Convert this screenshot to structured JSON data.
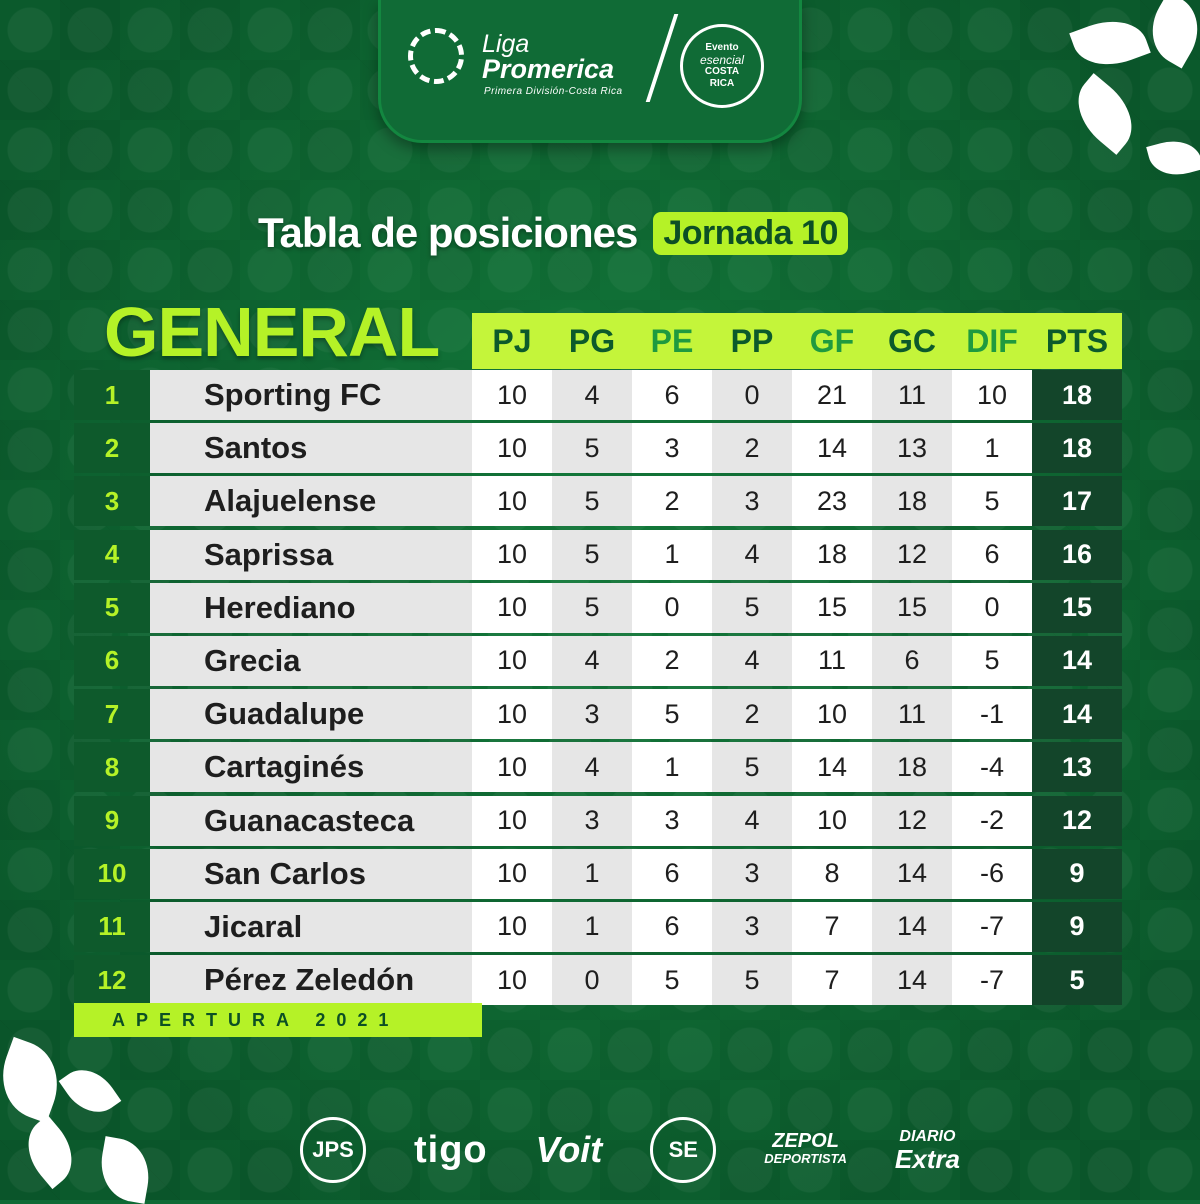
{
  "header": {
    "liga": "Liga",
    "promerica": "Promerica",
    "division": "Primera División-Costa Rica",
    "seal_lines": [
      "Evento",
      "esencial",
      "COSTA",
      "RICA"
    ]
  },
  "title": {
    "main": "Tabla de posiciones",
    "jornada": "Jornada 10"
  },
  "general_label": "GENERAL",
  "columns": [
    "PJ",
    "PG",
    "PE",
    "PP",
    "GF",
    "GC",
    "DIF",
    "PTS"
  ],
  "rows": [
    {
      "pos": "1",
      "team": "Sporting FC",
      "pj": "10",
      "pg": "4",
      "pe": "6",
      "pp": "0",
      "gf": "21",
      "gc": "11",
      "dif": "10",
      "pts": "18"
    },
    {
      "pos": "2",
      "team": "Santos",
      "pj": "10",
      "pg": "5",
      "pe": "3",
      "pp": "2",
      "gf": "14",
      "gc": "13",
      "dif": "1",
      "pts": "18"
    },
    {
      "pos": "3",
      "team": "Alajuelense",
      "pj": "10",
      "pg": "5",
      "pe": "2",
      "pp": "3",
      "gf": "23",
      "gc": "18",
      "dif": "5",
      "pts": "17"
    },
    {
      "pos": "4",
      "team": "Saprissa",
      "pj": "10",
      "pg": "5",
      "pe": "1",
      "pp": "4",
      "gf": "18",
      "gc": "12",
      "dif": "6",
      "pts": "16"
    },
    {
      "pos": "5",
      "team": "Herediano",
      "pj": "10",
      "pg": "5",
      "pe": "0",
      "pp": "5",
      "gf": "15",
      "gc": "15",
      "dif": "0",
      "pts": "15"
    },
    {
      "pos": "6",
      "team": "Grecia",
      "pj": "10",
      "pg": "4",
      "pe": "2",
      "pp": "4",
      "gf": "11",
      "gc": "6",
      "dif": "5",
      "pts": "14"
    },
    {
      "pos": "7",
      "team": "Guadalupe",
      "pj": "10",
      "pg": "3",
      "pe": "5",
      "pp": "2",
      "gf": "10",
      "gc": "11",
      "dif": "-1",
      "pts": "14"
    },
    {
      "pos": "8",
      "team": "Cartaginés",
      "pj": "10",
      "pg": "4",
      "pe": "1",
      "pp": "5",
      "gf": "14",
      "gc": "18",
      "dif": "-4",
      "pts": "13"
    },
    {
      "pos": "9",
      "team": "Guanacasteca",
      "pj": "10",
      "pg": "3",
      "pe": "3",
      "pp": "4",
      "gf": "10",
      "gc": "12",
      "dif": "-2",
      "pts": "12"
    },
    {
      "pos": "10",
      "team": "San Carlos",
      "pj": "10",
      "pg": "1",
      "pe": "6",
      "pp": "3",
      "gf": "8",
      "gc": "14",
      "dif": "-6",
      "pts": "9"
    },
    {
      "pos": "11",
      "team": "Jicaral",
      "pj": "10",
      "pg": "1",
      "pe": "6",
      "pp": "3",
      "gf": "7",
      "gc": "14",
      "dif": "-7",
      "pts": "9"
    },
    {
      "pos": "12",
      "team": "Pérez Zeledón",
      "pj": "10",
      "pg": "0",
      "pe": "5",
      "pp": "5",
      "gf": "7",
      "gc": "14",
      "dif": "-7",
      "pts": "5"
    }
  ],
  "footer_tag": "APERTURA 2021",
  "sponsors": {
    "jps": "JPS",
    "tigo": "tigo",
    "voit": "Voit",
    "salon": "SE",
    "zepol_1": "ZEPOL",
    "zepol_2": "DEPORTISTA",
    "extra_1": "DIARIO",
    "extra_2": "Extra"
  },
  "colors": {
    "background": "#0d6a34",
    "accent_lime": "#b5f227",
    "header_bar": "#c4f53a",
    "points_cell": "#13452a"
  }
}
